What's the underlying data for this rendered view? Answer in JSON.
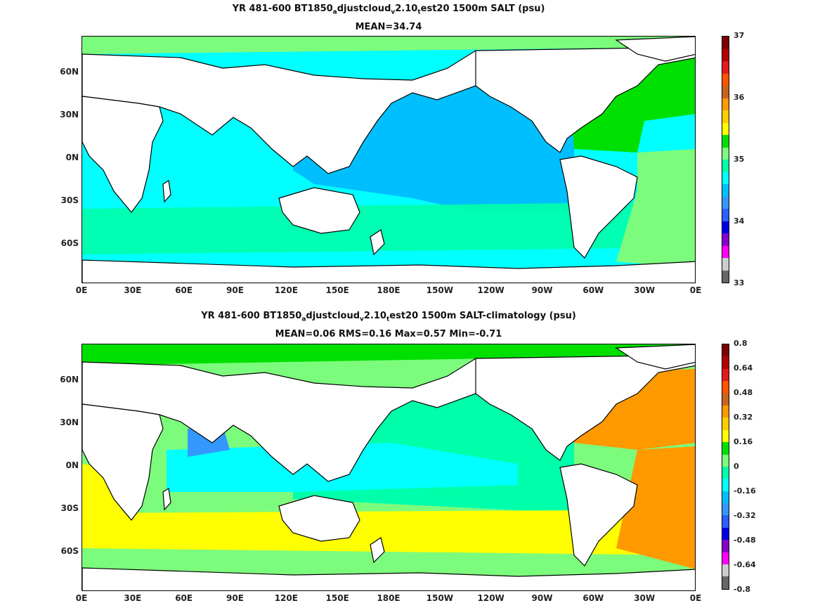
{
  "panels": [
    {
      "title_parts": [
        "YR 481-600 BT1850",
        "a",
        "djustcloud",
        "v",
        "2.10",
        "t",
        "est20 1500m SALT (psu)"
      ],
      "subtitle": "MEAN=34.74",
      "x_ticks": [
        "0E",
        "30E",
        "60E",
        "90E",
        "120E",
        "150E",
        "180E",
        "150W",
        "120W",
        "90W",
        "60W",
        "30W",
        "0E"
      ],
      "y_ticks": [
        "60N",
        "30N",
        "0N",
        "30S",
        "60S"
      ],
      "colorbar": {
        "labels": [
          "37",
          "36",
          "35",
          "34",
          "33"
        ],
        "colors": [
          "#7f0000",
          "#b30000",
          "#e31a1c",
          "#ff5500",
          "#c8641e",
          "#ff9900",
          "#ffcc00",
          "#ffff00",
          "#00e000",
          "#7cfc7c",
          "#00ffaa",
          "#00ffff",
          "#00bfff",
          "#3399ff",
          "#2b5fff",
          "#0000e6",
          "#8800cc",
          "#ff00ff",
          "#cccccc",
          "#666666"
        ]
      },
      "regions": {
        "ocean_main": "#00bfff",
        "ocean_south": "#00ffff",
        "atlantic_north": "#00e000",
        "atlantic_south": "#7cfc7c",
        "southern_band": "#00ffaa",
        "med": "#7f0000",
        "japan_sea": "#8800cc"
      }
    },
    {
      "title_parts": [
        "YR 481-600 BT1850",
        "a",
        "djustcloud",
        "v",
        "2.10",
        "t",
        "est20 1500m SALT-climatology (psu)"
      ],
      "subtitle": "MEAN=0.06   RMS=0.16   Max=0.57   Min=-0.71",
      "x_ticks": [
        "0E",
        "30E",
        "60E",
        "90E",
        "120E",
        "150E",
        "180E",
        "150W",
        "120W",
        "90W",
        "60W",
        "30W",
        "0E"
      ],
      "y_ticks": [
        "60N",
        "30N",
        "0N",
        "30S",
        "60S"
      ],
      "colorbar": {
        "labels": [
          "0.8",
          "0.64",
          "0.48",
          "0.32",
          "0.16",
          "0",
          "-0.16",
          "-0.32",
          "-0.48",
          "-0.64",
          "-0.8"
        ],
        "colors": [
          "#7f0000",
          "#b30000",
          "#e31a1c",
          "#ff5500",
          "#c8641e",
          "#ff9900",
          "#ffcc00",
          "#ffff00",
          "#00e000",
          "#7cfc7c",
          "#00ffaa",
          "#00ffff",
          "#00bfff",
          "#3399ff",
          "#2b5fff",
          "#0000e6",
          "#8800cc",
          "#ff00ff",
          "#cccccc",
          "#666666"
        ]
      },
      "regions": {
        "pacific": "#00ffaa",
        "pacific_cyan": "#00ffff",
        "atlantic_warm": "#ff9900",
        "atlantic_yellow": "#ffff00",
        "southern_yellow": "#ffff00",
        "southern_green": "#7cfc7c",
        "north_green": "#00e000",
        "arabian": "#3399ff"
      }
    }
  ]
}
